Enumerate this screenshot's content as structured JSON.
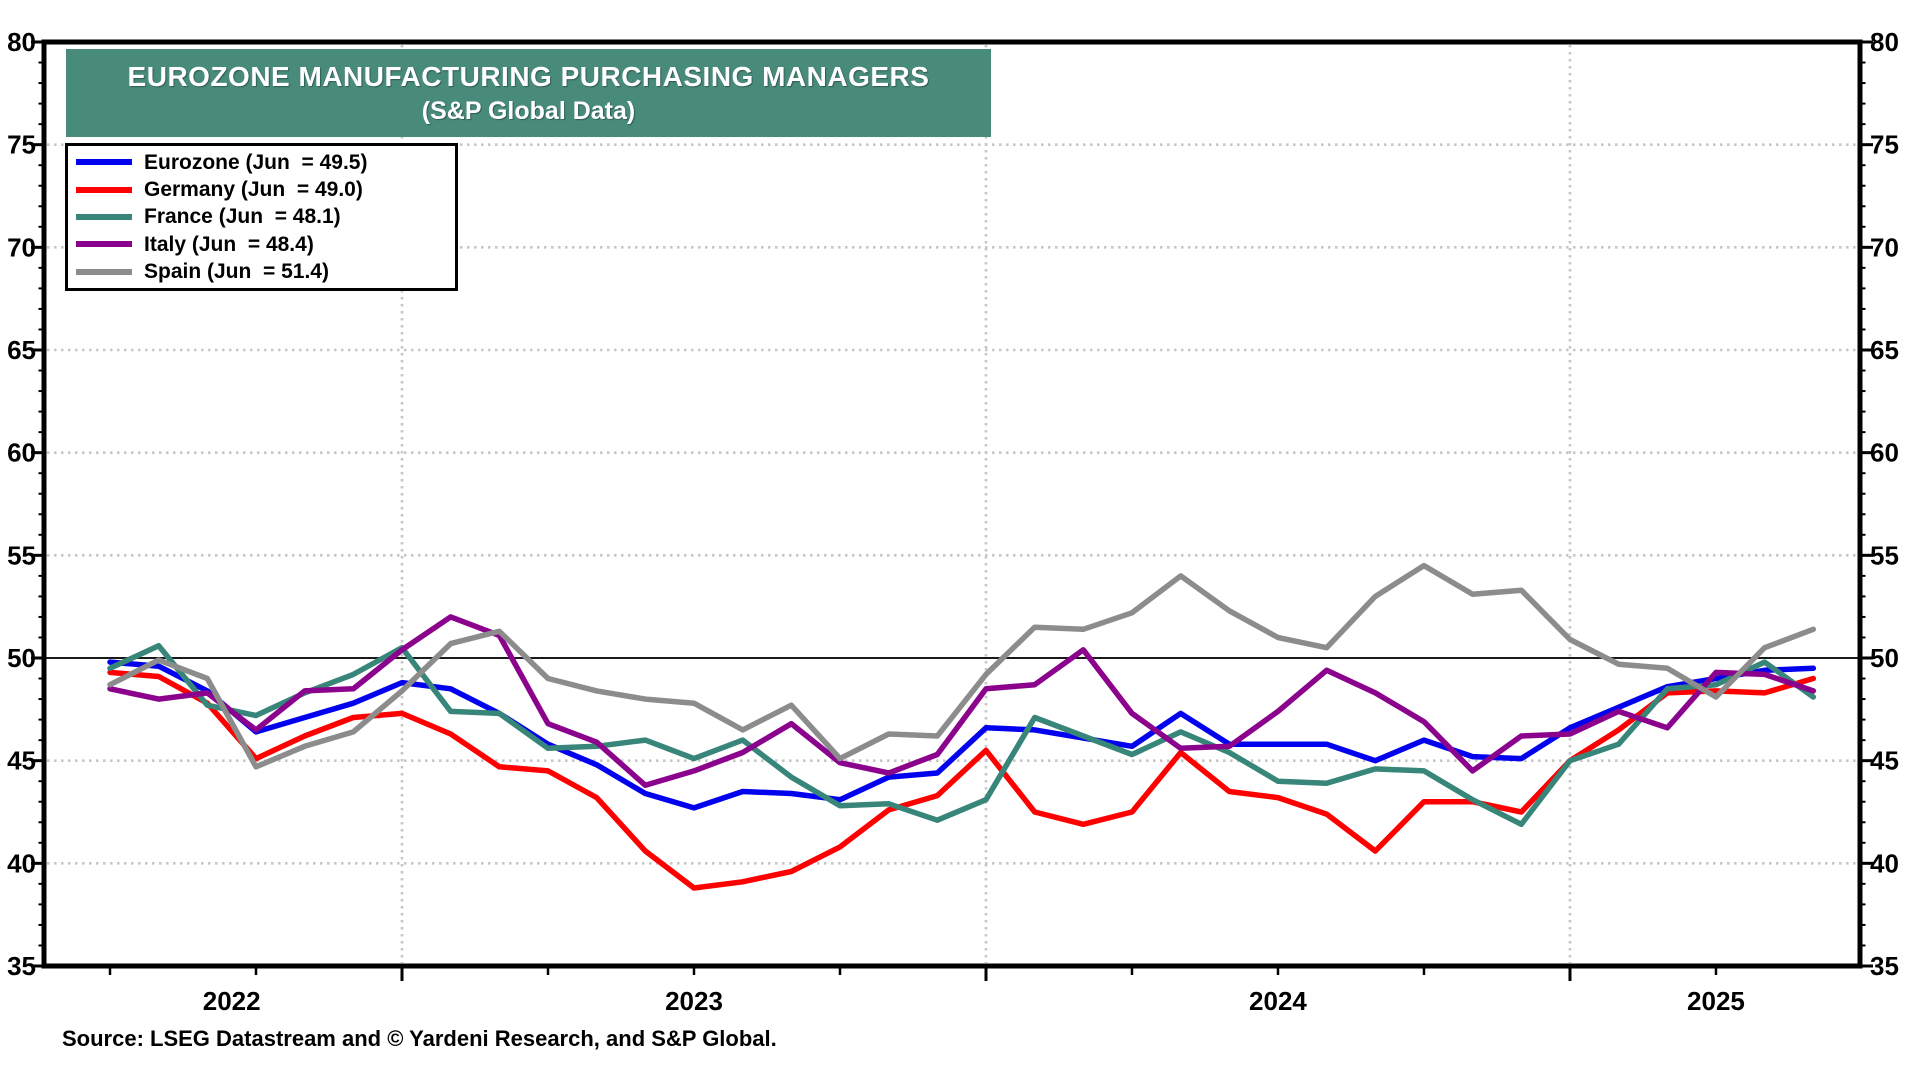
{
  "title": {
    "line1": "EUROZONE MANUFACTURING PURCHASING MANAGERS",
    "line2": "(S&P Global Data)",
    "bg_color": "#488B7B",
    "text_color": "#FFFFFF"
  },
  "source": {
    "text": "Source: LSEG Datastream and © Yardeni Research, and S&P Global."
  },
  "legend": {
    "items": [
      {
        "label": "Eurozone (Jun  = 49.5)",
        "color": "#0202EE"
      },
      {
        "label": "Germany (Jun  = 49.0)",
        "color": "#FF0000"
      },
      {
        "label": "France (Jun  = 48.1)",
        "color": "#38857A"
      },
      {
        "label": "Italy (Jun  = 48.4)",
        "color": "#8B038D"
      },
      {
        "label": "Spain (Jun  = 51.4)",
        "color": "#8C8C8C"
      }
    ]
  },
  "chart_data": {
    "type": "line",
    "title": "EUROZONE MANUFACTURING PURCHASING MANAGERS (S&P Global Data)",
    "ylim": [
      35,
      80
    ],
    "yticks": [
      35,
      40,
      45,
      50,
      55,
      60,
      65,
      70,
      75,
      80
    ],
    "reference_line": 50,
    "grid": "dotted, horizontal every 5 units and vertical at each January",
    "legend_position": "top-left",
    "x": [
      "2022-07",
      "2022-08",
      "2022-09",
      "2022-10",
      "2022-11",
      "2022-12",
      "2023-01",
      "2023-02",
      "2023-03",
      "2023-04",
      "2023-05",
      "2023-06",
      "2023-07",
      "2023-08",
      "2023-09",
      "2023-10",
      "2023-11",
      "2023-12",
      "2024-01",
      "2024-02",
      "2024-03",
      "2024-04",
      "2024-05",
      "2024-06",
      "2024-07",
      "2024-08",
      "2024-09",
      "2024-10",
      "2024-11",
      "2024-12",
      "2025-01",
      "2025-02",
      "2025-03",
      "2025-04",
      "2025-05",
      "2025-06"
    ],
    "year_axis_labels": [
      {
        "text": "2022",
        "month_index": 2.5
      },
      {
        "text": "2023",
        "month_index": 12
      },
      {
        "text": "2024",
        "month_index": 24
      },
      {
        "text": "2025",
        "month_index": 33
      }
    ],
    "series": [
      {
        "name": "Eurozone",
        "color": "#0202EE",
        "values": [
          49.8,
          49.6,
          48.4,
          46.4,
          47.1,
          47.8,
          48.8,
          48.5,
          47.3,
          45.8,
          44.8,
          43.4,
          42.7,
          43.5,
          43.4,
          43.1,
          44.2,
          44.4,
          46.6,
          46.5,
          46.1,
          45.7,
          47.3,
          45.8,
          45.8,
          45.8,
          45.0,
          46.0,
          45.2,
          45.1,
          46.6,
          47.6,
          48.6,
          49.0,
          49.4,
          49.5
        ]
      },
      {
        "name": "Germany",
        "color": "#FF0000",
        "values": [
          49.3,
          49.1,
          47.8,
          45.1,
          46.2,
          47.1,
          47.3,
          46.3,
          44.7,
          44.5,
          43.2,
          40.6,
          38.8,
          39.1,
          39.6,
          40.8,
          42.6,
          43.3,
          45.5,
          42.5,
          41.9,
          42.5,
          45.4,
          43.5,
          43.2,
          42.4,
          40.6,
          43.0,
          43.0,
          42.5,
          45.0,
          46.5,
          48.3,
          48.4,
          48.3,
          49.0
        ]
      },
      {
        "name": "France",
        "color": "#38857A",
        "values": [
          49.5,
          50.6,
          47.7,
          47.2,
          48.3,
          49.2,
          50.5,
          47.4,
          47.3,
          45.6,
          45.7,
          46.0,
          45.1,
          46.0,
          44.2,
          42.8,
          42.9,
          42.1,
          43.1,
          47.1,
          46.2,
          45.3,
          46.4,
          45.4,
          44.0,
          43.9,
          44.6,
          44.5,
          43.1,
          41.9,
          45.0,
          45.8,
          48.5,
          48.7,
          49.8,
          48.1
        ]
      },
      {
        "name": "Italy",
        "color": "#8B038D",
        "values": [
          48.5,
          48.0,
          48.3,
          46.5,
          48.4,
          48.5,
          50.4,
          52.0,
          51.1,
          46.8,
          45.9,
          43.8,
          44.5,
          45.4,
          46.8,
          44.9,
          44.4,
          45.3,
          48.5,
          48.7,
          50.4,
          47.3,
          45.6,
          45.7,
          47.4,
          49.4,
          48.3,
          46.9,
          44.5,
          46.2,
          46.3,
          47.4,
          46.6,
          49.3,
          49.2,
          48.4
        ]
      },
      {
        "name": "Spain",
        "color": "#8C8C8C",
        "values": [
          48.7,
          49.9,
          49.0,
          44.7,
          45.7,
          46.4,
          48.4,
          50.7,
          51.3,
          49.0,
          48.4,
          48.0,
          47.8,
          46.5,
          47.7,
          45.1,
          46.3,
          46.2,
          49.2,
          51.5,
          51.4,
          52.2,
          54.0,
          52.3,
          51.0,
          50.5,
          53.0,
          54.5,
          53.1,
          53.3,
          50.9,
          49.7,
          49.5,
          48.1,
          50.5,
          51.4
        ]
      }
    ],
    "colors": {
      "grid": "#c6c6c6",
      "reference_line": "#1a1a1a",
      "axis": "#000000"
    }
  }
}
